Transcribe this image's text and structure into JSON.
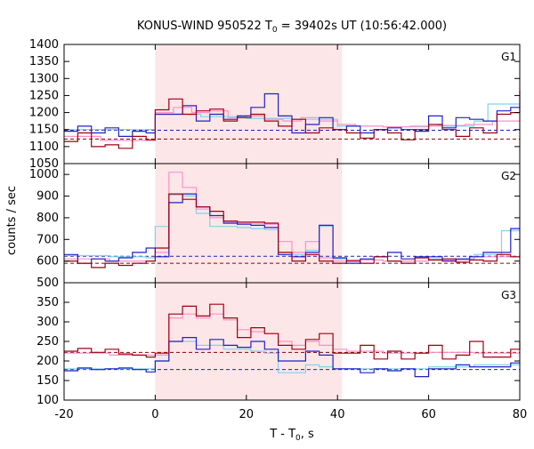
{
  "chart_data": {
    "type": "line",
    "title": "KONUS-WIND 950522 T",
    "title_sub": "0",
    "title_rest": " = 39402s UT (10:56:42.000)",
    "xlabel": "T - T",
    "xlabel_sub": "0",
    "xlabel_rest": ", s",
    "ylabel": "counts / sec",
    "xlim": [
      -20,
      80
    ],
    "xticks": [
      -20,
      0,
      20,
      40,
      60,
      80
    ],
    "shaded_interval": [
      0,
      41
    ],
    "shade_color": "#fde6e8",
    "panels": [
      {
        "label": "G1",
        "ylim": [
          1050,
          1400
        ],
        "yticks": [
          1050,
          1100,
          1150,
          1200,
          1250,
          1300,
          1350,
          1400
        ],
        "baselines": [
          {
            "color": "#1f1fb4",
            "value": 1148
          },
          {
            "color": "#8b0000",
            "value": 1122
          }
        ],
        "series": [
          {
            "color": "#7fd3e8",
            "width": 1.2,
            "x": [
              -20,
              -10,
              0,
              10,
              20,
              30,
              40,
              50,
              60,
              70,
              73,
              80
            ],
            "y": [
              1150,
              1150,
              1195,
              1188,
              1183,
              1180,
              1160,
              1158,
              1160,
              1175,
              1225,
              1225
            ]
          },
          {
            "color": "#ff8fc8",
            "width": 1.2,
            "x": [
              -20,
              -12,
              0,
              4,
              8,
              12,
              16,
              20,
              24,
              28,
              32,
              36,
              40,
              44,
              50,
              56,
              62,
              68,
              74,
              80
            ],
            "y": [
              1130,
              1118,
              1200,
              1215,
              1200,
              1205,
              1185,
              1190,
              1180,
              1175,
              1185,
              1175,
              1165,
              1160,
              1158,
              1160,
              1162,
              1165,
              1175,
              1190
            ]
          },
          {
            "color": "#2020c8",
            "width": 1.2,
            "x": [
              -20,
              -17,
              -14,
              -11,
              -8,
              -5,
              -2,
              0,
              3,
              6,
              9,
              12,
              15,
              18,
              21,
              24,
              27,
              30,
              33,
              36,
              39,
              42,
              45,
              48,
              51,
              54,
              57,
              60,
              63,
              66,
              69,
              72,
              75,
              78,
              80
            ],
            "y": [
              1145,
              1160,
              1140,
              1155,
              1130,
              1145,
              1140,
              1195,
              1195,
              1220,
              1175,
              1195,
              1180,
              1190,
              1215,
              1255,
              1190,
              1140,
              1165,
              1185,
              1150,
              1160,
              1140,
              1150,
              1155,
              1150,
              1145,
              1190,
              1155,
              1185,
              1180,
              1175,
              1205,
              1215,
              1215
            ]
          },
          {
            "color": "#a00010",
            "width": 1.2,
            "x": [
              -20,
              -17,
              -14,
              -11,
              -8,
              -5,
              -2,
              0,
              3,
              6,
              9,
              12,
              15,
              18,
              21,
              24,
              27,
              30,
              33,
              36,
              39,
              42,
              45,
              48,
              51,
              54,
              57,
              60,
              63,
              66,
              69,
              72,
              75,
              78,
              80
            ],
            "y": [
              1115,
              1140,
              1100,
              1105,
              1095,
              1130,
              1120,
              1208,
              1240,
              1195,
              1205,
              1210,
              1175,
              1185,
              1195,
              1175,
              1160,
              1180,
              1140,
              1155,
              1150,
              1140,
              1125,
              1150,
              1140,
              1120,
              1150,
              1165,
              1150,
              1130,
              1155,
              1140,
              1195,
              1200,
              1265
            ]
          }
        ]
      },
      {
        "label": "G2",
        "ylim": [
          500,
          1050
        ],
        "yticks": [
          500,
          600,
          700,
          800,
          900,
          1000
        ],
        "baselines": [
          {
            "color": "#1f1fb4",
            "value": 622
          },
          {
            "color": "#8b0000",
            "value": 590
          }
        ],
        "series": [
          {
            "color": "#7fd3e8",
            "width": 1.2,
            "x": [
              -20,
              -10,
              -2,
              0,
              3,
              6,
              9,
              12,
              15,
              18,
              21,
              24,
              27,
              30,
              33,
              36,
              39,
              42,
              50,
              60,
              70,
              76,
              80
            ],
            "y": [
              625,
              620,
              615,
              760,
              905,
              900,
              820,
              760,
              760,
              755,
              750,
              745,
              640,
              630,
              650,
              760,
              610,
              605,
              600,
              610,
              630,
              740,
              740
            ]
          },
          {
            "color": "#ff8fc8",
            "width": 1.2,
            "x": [
              -20,
              -10,
              0,
              3,
              6,
              9,
              12,
              15,
              18,
              21,
              24,
              27,
              30,
              33,
              36,
              39,
              42,
              50,
              60,
              70,
              80
            ],
            "y": [
              610,
              600,
              640,
              1010,
              940,
              840,
              800,
              780,
              775,
              775,
              770,
              690,
              640,
              690,
              615,
              600,
              605,
              600,
              605,
              620,
              640
            ]
          },
          {
            "color": "#2020c8",
            "width": 1.2,
            "x": [
              -20,
              -17,
              -14,
              -11,
              -8,
              -5,
              -2,
              0,
              3,
              6,
              9,
              12,
              15,
              18,
              21,
              24,
              27,
              30,
              33,
              36,
              39,
              42,
              45,
              48,
              51,
              54,
              57,
              60,
              63,
              66,
              69,
              72,
              75,
              78,
              80
            ],
            "y": [
              630,
              590,
              610,
              600,
              615,
              640,
              660,
              620,
              870,
              910,
              850,
              810,
              775,
              770,
              765,
              755,
              630,
              620,
              640,
              765,
              615,
              590,
              610,
              620,
              640,
              610,
              620,
              620,
              600,
              610,
              620,
              640,
              640,
              750,
              750
            ]
          },
          {
            "color": "#a00010",
            "width": 1.2,
            "x": [
              -20,
              -17,
              -14,
              -11,
              -8,
              -5,
              -2,
              0,
              3,
              6,
              9,
              12,
              15,
              18,
              21,
              24,
              27,
              30,
              33,
              36,
              39,
              42,
              45,
              48,
              51,
              54,
              57,
              60,
              63,
              66,
              69,
              72,
              75,
              78,
              80
            ],
            "y": [
              600,
              590,
              570,
              590,
              580,
              590,
              600,
              660,
              910,
              885,
              850,
              830,
              785,
              780,
              780,
              775,
              640,
              600,
              630,
              600,
              590,
              600,
              590,
              620,
              600,
              590,
              615,
              605,
              610,
              595,
              605,
              600,
              630,
              620,
              620
            ]
          }
        ]
      },
      {
        "label": "G3",
        "ylim": [
          100,
          400
        ],
        "yticks": [
          100,
          150,
          200,
          250,
          300,
          350
        ],
        "baselines": [
          {
            "color": "#8b0000",
            "value": 222
          },
          {
            "color": "#1f1fb4",
            "value": 178
          }
        ],
        "series": [
          {
            "color": "#7fd3e8",
            "width": 1.2,
            "x": [
              -20,
              -10,
              0,
              3,
              6,
              9,
              12,
              15,
              18,
              21,
              24,
              27,
              30,
              33,
              36,
              39,
              42,
              50,
              60,
              70,
              80
            ],
            "y": [
              180,
              180,
              200,
              250,
              250,
              240,
              240,
              230,
              230,
              225,
              220,
              170,
              170,
              190,
              185,
              180,
              180,
              180,
              185,
              190,
              195
            ]
          },
          {
            "color": "#ff8fc8",
            "width": 1.2,
            "x": [
              -20,
              -10,
              0,
              3,
              6,
              9,
              12,
              15,
              18,
              21,
              24,
              27,
              30,
              33,
              36,
              39,
              42,
              50,
              60,
              70,
              80
            ],
            "y": [
              220,
              215,
              215,
              310,
              320,
              310,
              320,
              305,
              280,
              275,
              270,
              250,
              240,
              250,
              240,
              230,
              225,
              220,
              222,
              220,
              220
            ]
          },
          {
            "color": "#2020c8",
            "width": 1.2,
            "x": [
              -20,
              -17,
              -14,
              -11,
              -8,
              -5,
              -2,
              0,
              3,
              6,
              9,
              12,
              15,
              18,
              21,
              24,
              27,
              30,
              33,
              36,
              39,
              42,
              45,
              48,
              51,
              54,
              57,
              60,
              63,
              66,
              69,
              72,
              75,
              78,
              80
            ],
            "y": [
              175,
              182,
              178,
              180,
              182,
              178,
              172,
              200,
              250,
              260,
              230,
              255,
              240,
              235,
              250,
              230,
              200,
              200,
              225,
              215,
              180,
              180,
              170,
              180,
              175,
              180,
              160,
              180,
              180,
              190,
              185,
              185,
              185,
              195,
              195
            ]
          },
          {
            "color": "#a00010",
            "width": 1.2,
            "x": [
              -20,
              -17,
              -14,
              -11,
              -8,
              -5,
              -2,
              0,
              3,
              6,
              9,
              12,
              15,
              18,
              21,
              24,
              27,
              30,
              33,
              36,
              39,
              42,
              45,
              48,
              51,
              54,
              57,
              60,
              63,
              66,
              69,
              72,
              75,
              78,
              80
            ],
            "y": [
              225,
              232,
              222,
              230,
              218,
              215,
              210,
              220,
              320,
              340,
              315,
              345,
              310,
              260,
              285,
              270,
              240,
              230,
              255,
              270,
              220,
              220,
              240,
              205,
              225,
              205,
              220,
              240,
              205,
              215,
              250,
              210,
              210,
              230,
              250
            ]
          }
        ]
      }
    ]
  }
}
